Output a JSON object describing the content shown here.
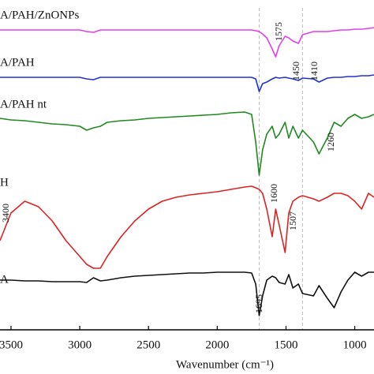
{
  "chart_data": {
    "type": "line",
    "xlabel": "Wavenumber (cm⁻¹)",
    "x": [
      3580,
      3500,
      3400,
      3300,
      3200,
      3100,
      3000,
      2950,
      2900,
      2850,
      2800,
      2700,
      2600,
      2500,
      2400,
      2300,
      2200,
      2100,
      2000,
      1900,
      1800,
      1750,
      1720,
      1695,
      1670,
      1640,
      1600,
      1575,
      1550,
      1507,
      1480,
      1450,
      1410,
      1380,
      1300,
      1260,
      1200,
      1150,
      1100,
      1050,
      1000,
      950,
      900,
      860
    ],
    "xlim": [
      3580,
      860
    ],
    "xticks": [
      3500,
      3000,
      2500,
      2000,
      1500,
      1000
    ],
    "ylim": [
      0,
      418
    ],
    "reference_lines": [
      1695,
      1380
    ],
    "series": [
      {
        "name": "A/PAH/ZnONPs",
        "color": "#e040e8",
        "values": [
          380,
          380,
          380,
          380,
          380,
          380,
          380,
          378,
          377,
          380,
          380,
          380,
          380,
          380,
          380,
          380,
          380,
          380,
          380,
          380,
          380,
          380,
          379,
          378,
          375,
          370,
          356,
          346,
          360,
          372,
          370,
          366,
          363,
          374,
          378,
          378,
          378,
          379,
          380,
          380,
          381,
          381,
          382,
          383
        ]
      },
      {
        "name": "A/PAH",
        "color": "#2233cc",
        "values": [
          320,
          320,
          320,
          320,
          320,
          320,
          320,
          318,
          317,
          320,
          320,
          320,
          320,
          320,
          320,
          320,
          320,
          320,
          320,
          320,
          320,
          320,
          318,
          302,
          312,
          314,
          318,
          320,
          319,
          320,
          319,
          318,
          316,
          319,
          318,
          314,
          319,
          320,
          320,
          321,
          321,
          322,
          322,
          323
        ]
      },
      {
        "name": "A/PAH nt",
        "color": "#1f8a1f",
        "values": [
          268,
          266,
          265,
          263,
          261,
          260,
          258,
          253,
          256,
          258,
          263,
          265,
          266,
          268,
          269,
          270,
          271,
          272,
          273,
          275,
          276,
          273,
          238,
          196,
          228,
          248,
          258,
          243,
          248,
          263,
          243,
          258,
          243,
          253,
          238,
          223,
          243,
          263,
          258,
          268,
          273,
          268,
          270,
          273
        ]
      },
      {
        "name": "H",
        "color": "#dd2222",
        "values": [
          113,
          148,
          163,
          156,
          138,
          113,
          93,
          83,
          78,
          78,
          93,
          118,
          138,
          153,
          163,
          168,
          171,
          173,
          175,
          178,
          181,
          182,
          180,
          178,
          173,
          153,
          118,
          153,
          133,
          98,
          148,
          163,
          168,
          170,
          166,
          163,
          168,
          173,
          173,
          170,
          163,
          153,
          173,
          168
        ]
      },
      {
        "name": "A",
        "color": "#111111",
        "values": [
          63,
          63,
          62,
          62,
          61,
          61,
          61,
          60,
          66,
          62,
          63,
          66,
          68,
          69,
          70,
          71,
          72,
          72,
          73,
          73,
          73,
          72,
          58,
          18,
          43,
          63,
          68,
          66,
          60,
          58,
          70,
          53,
          58,
          46,
          43,
          56,
          40,
          28,
          48,
          63,
          73,
          68,
          73,
          73
        ]
      }
    ],
    "annotations": [
      "1575",
      "1450",
      "1410",
      "1260",
      "3400",
      "1600",
      "1507",
      "1695"
    ]
  }
}
